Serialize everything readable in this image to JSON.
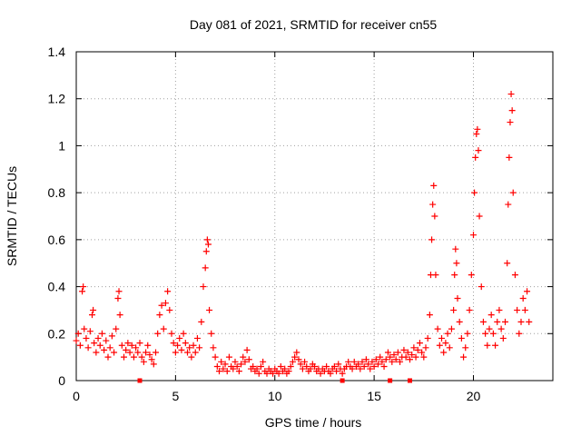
{
  "chart_data": {
    "type": "scatter",
    "title": "Day 081 of 2021, SRMTID for receiver cn55",
    "xlabel": "GPS time / hours",
    "ylabel": "SRMTID / TECUs",
    "xlim": [
      0,
      24
    ],
    "ylim": [
      0,
      1.4
    ],
    "x_ticks": [
      0,
      5,
      10,
      15,
      20
    ],
    "x_tick_labels": [
      "0",
      "5",
      "10",
      "15",
      "20"
    ],
    "y_ticks": [
      0,
      0.2,
      0.4,
      0.6,
      0.8,
      1.0,
      1.2,
      1.4
    ],
    "y_tick_labels": [
      "0",
      "0.2",
      "0.4",
      "0.6",
      "0.8",
      "1",
      "1.2",
      "1.4"
    ],
    "grid": true,
    "marker": "plus",
    "color": "#ff0000",
    "series": [
      {
        "name": "SRMTID",
        "points": [
          [
            0.0,
            0.17
          ],
          [
            0.1,
            0.2
          ],
          [
            0.2,
            0.15
          ],
          [
            0.3,
            0.38
          ],
          [
            0.35,
            0.4
          ],
          [
            0.4,
            0.22
          ],
          [
            0.5,
            0.18
          ],
          [
            0.6,
            0.14
          ],
          [
            0.7,
            0.21
          ],
          [
            0.8,
            0.28
          ],
          [
            0.85,
            0.3
          ],
          [
            0.9,
            0.16
          ],
          [
            1.0,
            0.12
          ],
          [
            1.1,
            0.18
          ],
          [
            1.2,
            0.15
          ],
          [
            1.3,
            0.2
          ],
          [
            1.4,
            0.13
          ],
          [
            1.5,
            0.17
          ],
          [
            1.6,
            0.1
          ],
          [
            1.7,
            0.14
          ],
          [
            1.8,
            0.19
          ],
          [
            1.9,
            0.12
          ],
          [
            2.0,
            0.22
          ],
          [
            2.1,
            0.35
          ],
          [
            2.15,
            0.38
          ],
          [
            2.2,
            0.28
          ],
          [
            2.3,
            0.15
          ],
          [
            2.4,
            0.1
          ],
          [
            2.5,
            0.13
          ],
          [
            2.6,
            0.16
          ],
          [
            2.7,
            0.12
          ],
          [
            2.8,
            0.15
          ],
          [
            2.9,
            0.1
          ],
          [
            3.0,
            0.14
          ],
          [
            3.1,
            0.12
          ],
          [
            3.2,
            0.16
          ],
          [
            3.3,
            0.1
          ],
          [
            3.4,
            0.08
          ],
          [
            3.5,
            0.12
          ],
          [
            3.6,
            0.15
          ],
          [
            3.7,
            0.11
          ],
          [
            3.8,
            0.09
          ],
          [
            3.9,
            0.07
          ],
          [
            4.0,
            0.12
          ],
          [
            4.1,
            0.2
          ],
          [
            4.2,
            0.28
          ],
          [
            4.3,
            0.32
          ],
          [
            4.4,
            0.22
          ],
          [
            4.5,
            0.33
          ],
          [
            4.6,
            0.38
          ],
          [
            4.7,
            0.3
          ],
          [
            4.8,
            0.2
          ],
          [
            4.9,
            0.16
          ],
          [
            5.0,
            0.12
          ],
          [
            5.1,
            0.15
          ],
          [
            5.2,
            0.18
          ],
          [
            5.3,
            0.13
          ],
          [
            5.4,
            0.2
          ],
          [
            5.5,
            0.16
          ],
          [
            5.6,
            0.12
          ],
          [
            5.7,
            0.14
          ],
          [
            5.8,
            0.1
          ],
          [
            5.9,
            0.15
          ],
          [
            6.0,
            0.12
          ],
          [
            6.1,
            0.18
          ],
          [
            6.2,
            0.14
          ],
          [
            6.3,
            0.25
          ],
          [
            6.4,
            0.4
          ],
          [
            6.5,
            0.48
          ],
          [
            6.55,
            0.55
          ],
          [
            6.6,
            0.6
          ],
          [
            6.65,
            0.58
          ],
          [
            6.7,
            0.3
          ],
          [
            6.8,
            0.2
          ],
          [
            6.9,
            0.14
          ],
          [
            7.0,
            0.1
          ],
          [
            7.1,
            0.06
          ],
          [
            7.2,
            0.04
          ],
          [
            7.3,
            0.08
          ],
          [
            7.4,
            0.05
          ],
          [
            7.5,
            0.07
          ],
          [
            7.6,
            0.04
          ],
          [
            7.7,
            0.1
          ],
          [
            7.8,
            0.06
          ],
          [
            7.9,
            0.05
          ],
          [
            8.0,
            0.08
          ],
          [
            8.1,
            0.06
          ],
          [
            8.2,
            0.04
          ],
          [
            8.3,
            0.07
          ],
          [
            8.4,
            0.1
          ],
          [
            8.5,
            0.08
          ],
          [
            8.6,
            0.13
          ],
          [
            8.7,
            0.09
          ],
          [
            8.8,
            0.05
          ],
          [
            8.9,
            0.06
          ],
          [
            9.0,
            0.04
          ],
          [
            9.1,
            0.05
          ],
          [
            9.2,
            0.03
          ],
          [
            9.3,
            0.06
          ],
          [
            9.4,
            0.08
          ],
          [
            9.5,
            0.04
          ],
          [
            9.6,
            0.03
          ],
          [
            9.7,
            0.05
          ],
          [
            9.8,
            0.04
          ],
          [
            9.9,
            0.03
          ],
          [
            10.0,
            0.05
          ],
          [
            10.1,
            0.04
          ],
          [
            10.2,
            0.03
          ],
          [
            10.3,
            0.06
          ],
          [
            10.4,
            0.04
          ],
          [
            10.5,
            0.05
          ],
          [
            10.6,
            0.03
          ],
          [
            10.7,
            0.04
          ],
          [
            10.8,
            0.06
          ],
          [
            10.9,
            0.08
          ],
          [
            11.0,
            0.1
          ],
          [
            11.1,
            0.12
          ],
          [
            11.2,
            0.09
          ],
          [
            11.3,
            0.07
          ],
          [
            11.4,
            0.05
          ],
          [
            11.5,
            0.08
          ],
          [
            11.6,
            0.06
          ],
          [
            11.7,
            0.04
          ],
          [
            11.8,
            0.05
          ],
          [
            11.9,
            0.07
          ],
          [
            12.0,
            0.06
          ],
          [
            12.1,
            0.04
          ],
          [
            12.2,
            0.05
          ],
          [
            12.3,
            0.03
          ],
          [
            12.4,
            0.05
          ],
          [
            12.5,
            0.04
          ],
          [
            12.6,
            0.06
          ],
          [
            12.7,
            0.04
          ],
          [
            12.8,
            0.03
          ],
          [
            12.9,
            0.05
          ],
          [
            13.0,
            0.06
          ],
          [
            13.1,
            0.04
          ],
          [
            13.2,
            0.07
          ],
          [
            13.3,
            0.05
          ],
          [
            13.4,
            0.03
          ],
          [
            13.5,
            0.05
          ],
          [
            13.6,
            0.06
          ],
          [
            13.7,
            0.08
          ],
          [
            13.8,
            0.06
          ],
          [
            13.9,
            0.05
          ],
          [
            14.0,
            0.08
          ],
          [
            14.1,
            0.06
          ],
          [
            14.2,
            0.07
          ],
          [
            14.3,
            0.05
          ],
          [
            14.4,
            0.08
          ],
          [
            14.5,
            0.06
          ],
          [
            14.6,
            0.09
          ],
          [
            14.7,
            0.07
          ],
          [
            14.8,
            0.05
          ],
          [
            14.9,
            0.08
          ],
          [
            15.0,
            0.06
          ],
          [
            15.1,
            0.09
          ],
          [
            15.2,
            0.07
          ],
          [
            15.3,
            0.1
          ],
          [
            15.4,
            0.08
          ],
          [
            15.5,
            0.06
          ],
          [
            15.6,
            0.09
          ],
          [
            15.7,
            0.12
          ],
          [
            15.8,
            0.1
          ],
          [
            15.9,
            0.08
          ],
          [
            16.0,
            0.11
          ],
          [
            16.1,
            0.09
          ],
          [
            16.2,
            0.12
          ],
          [
            16.3,
            0.08
          ],
          [
            16.4,
            0.1
          ],
          [
            16.5,
            0.13
          ],
          [
            16.6,
            0.1
          ],
          [
            16.7,
            0.12
          ],
          [
            16.8,
            0.09
          ],
          [
            16.9,
            0.11
          ],
          [
            17.0,
            0.14
          ],
          [
            17.1,
            0.1
          ],
          [
            17.2,
            0.13
          ],
          [
            17.3,
            0.16
          ],
          [
            17.4,
            0.12
          ],
          [
            17.5,
            0.1
          ],
          [
            17.6,
            0.14
          ],
          [
            17.7,
            0.18
          ],
          [
            17.8,
            0.28
          ],
          [
            17.85,
            0.45
          ],
          [
            17.9,
            0.6
          ],
          [
            17.95,
            0.75
          ],
          [
            18.0,
            0.83
          ],
          [
            18.05,
            0.7
          ],
          [
            18.1,
            0.45
          ],
          [
            18.2,
            0.22
          ],
          [
            18.3,
            0.15
          ],
          [
            18.4,
            0.18
          ],
          [
            18.5,
            0.12
          ],
          [
            18.6,
            0.16
          ],
          [
            18.7,
            0.2
          ],
          [
            18.8,
            0.14
          ],
          [
            18.9,
            0.22
          ],
          [
            19.0,
            0.3
          ],
          [
            19.05,
            0.45
          ],
          [
            19.1,
            0.56
          ],
          [
            19.15,
            0.5
          ],
          [
            19.2,
            0.35
          ],
          [
            19.3,
            0.25
          ],
          [
            19.4,
            0.18
          ],
          [
            19.5,
            0.1
          ],
          [
            19.6,
            0.14
          ],
          [
            19.7,
            0.2
          ],
          [
            19.8,
            0.3
          ],
          [
            19.9,
            0.45
          ],
          [
            20.0,
            0.62
          ],
          [
            20.05,
            0.8
          ],
          [
            20.1,
            0.95
          ],
          [
            20.15,
            1.05
          ],
          [
            20.2,
            1.07
          ],
          [
            20.25,
            0.98
          ],
          [
            20.3,
            0.7
          ],
          [
            20.4,
            0.4
          ],
          [
            20.5,
            0.25
          ],
          [
            20.6,
            0.2
          ],
          [
            20.7,
            0.15
          ],
          [
            20.8,
            0.22
          ],
          [
            20.9,
            0.28
          ],
          [
            21.0,
            0.2
          ],
          [
            21.1,
            0.15
          ],
          [
            21.2,
            0.25
          ],
          [
            21.3,
            0.3
          ],
          [
            21.4,
            0.22
          ],
          [
            21.5,
            0.18
          ],
          [
            21.6,
            0.25
          ],
          [
            21.7,
            0.5
          ],
          [
            21.75,
            0.75
          ],
          [
            21.8,
            0.95
          ],
          [
            21.85,
            1.1
          ],
          [
            21.9,
            1.22
          ],
          [
            21.95,
            1.15
          ],
          [
            22.0,
            0.8
          ],
          [
            22.1,
            0.45
          ],
          [
            22.2,
            0.3
          ],
          [
            22.3,
            0.2
          ],
          [
            22.4,
            0.25
          ],
          [
            22.5,
            0.35
          ],
          [
            22.6,
            0.3
          ],
          [
            22.7,
            0.38
          ],
          [
            22.8,
            0.25
          ]
        ]
      }
    ],
    "axis_markers": [
      3.2,
      13.4,
      15.8,
      16.8
    ]
  }
}
